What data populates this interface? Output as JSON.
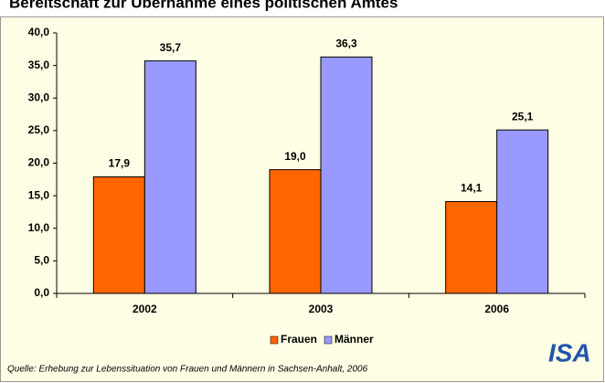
{
  "chart_data": {
    "type": "bar",
    "title": "Bereitschaft zur Übernahme eines politischen Amtes",
    "categories": [
      "2002",
      "2003",
      "2006"
    ],
    "series": [
      {
        "name": "Frauen",
        "color": "#ff6600",
        "values": [
          17.9,
          19.0,
          14.1
        ],
        "value_labels": [
          "17,9",
          "19,0",
          "14,1"
        ]
      },
      {
        "name": "Männer",
        "color": "#9999ff",
        "values": [
          35.7,
          36.3,
          25.1
        ],
        "value_labels": [
          "35,7",
          "36,3",
          "25,1"
        ]
      }
    ],
    "ylim": [
      0,
      40
    ],
    "yticks": [
      {
        "value": 0,
        "label": "0,0"
      },
      {
        "value": 5,
        "label": "5,0"
      },
      {
        "value": 10,
        "label": "10,0"
      },
      {
        "value": 15,
        "label": "15,0"
      },
      {
        "value": 20,
        "label": "20,0"
      },
      {
        "value": 25,
        "label": "25,0"
      },
      {
        "value": 30,
        "label": "30,0"
      },
      {
        "value": 35,
        "label": "35,0"
      },
      {
        "value": 40,
        "label": "40,0"
      }
    ],
    "grid": false,
    "legend": "bottom",
    "source": "Quelle: Erhebung zur Lebenssituation von Frauen und Männern in Sachsen-Anhalt, 2006",
    "logo": "ISA"
  }
}
